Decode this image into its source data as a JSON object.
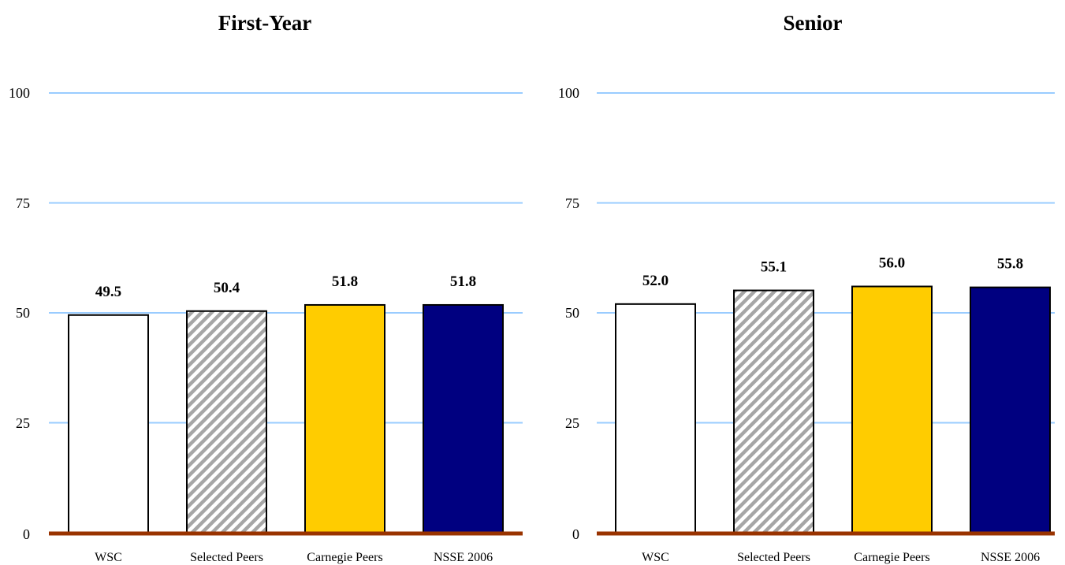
{
  "chart_data": [
    {
      "type": "bar",
      "title": "First-Year",
      "categories": [
        "WSC",
        "Selected Peers",
        "Carnegie Peers",
        "NSSE 2006"
      ],
      "values": [
        49.5,
        50.4,
        51.8,
        51.8
      ],
      "data_labels": [
        "49.5",
        "50.4",
        "51.8",
        "51.8"
      ],
      "ylim": [
        0,
        100
      ],
      "yticks": [
        0,
        25,
        50,
        75,
        100
      ],
      "ytick_labels": [
        "0",
        "25",
        "50",
        "75",
        "100"
      ],
      "grid": true,
      "xlabel": "",
      "ylabel": ""
    },
    {
      "type": "bar",
      "title": "Senior",
      "categories": [
        "WSC",
        "Selected Peers",
        "Carnegie Peers",
        "NSSE 2006"
      ],
      "values": [
        52.0,
        55.1,
        56.0,
        55.8
      ],
      "data_labels": [
        "52.0",
        "55.1",
        "56.0",
        "55.8"
      ],
      "ylim": [
        0,
        100
      ],
      "yticks": [
        0,
        25,
        50,
        75,
        100
      ],
      "ytick_labels": [
        "0",
        "25",
        "50",
        "75",
        "100"
      ],
      "grid": true,
      "xlabel": "",
      "ylabel": ""
    }
  ],
  "style": {
    "bar_fills": [
      "#ffffff",
      "hatch",
      "#ffcc00",
      "#000080"
    ],
    "gridline_color": "#99ccff",
    "baseline_color": "#993300",
    "bar_stroke": "#000000",
    "hatch_color": "#a6a6a6"
  }
}
